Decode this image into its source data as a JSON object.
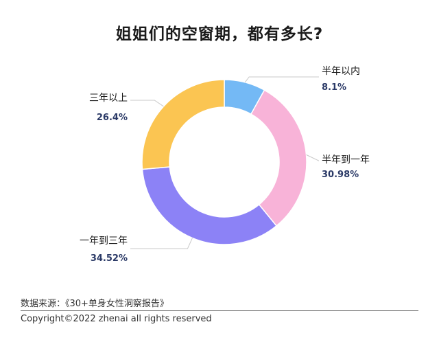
{
  "chart_data": {
    "type": "pie",
    "title": "姐姐们的空窗期，都有多长?",
    "categories": [
      "半年以内",
      "半年到一年",
      "一年到三年",
      "三年以上"
    ],
    "values": [
      8.1,
      30.98,
      34.52,
      26.4
    ],
    "value_labels": [
      "8.1%",
      "30.98%",
      "34.52%",
      "26.4%"
    ],
    "colors": [
      "#74b9f5",
      "#f8b3d8",
      "#8c82f6",
      "#fbc552"
    ]
  },
  "footer": {
    "source": "数据来源：《30+单身女性洞察报告》",
    "copyright": "Copyright©2022  zhenai  all rights reserved"
  }
}
